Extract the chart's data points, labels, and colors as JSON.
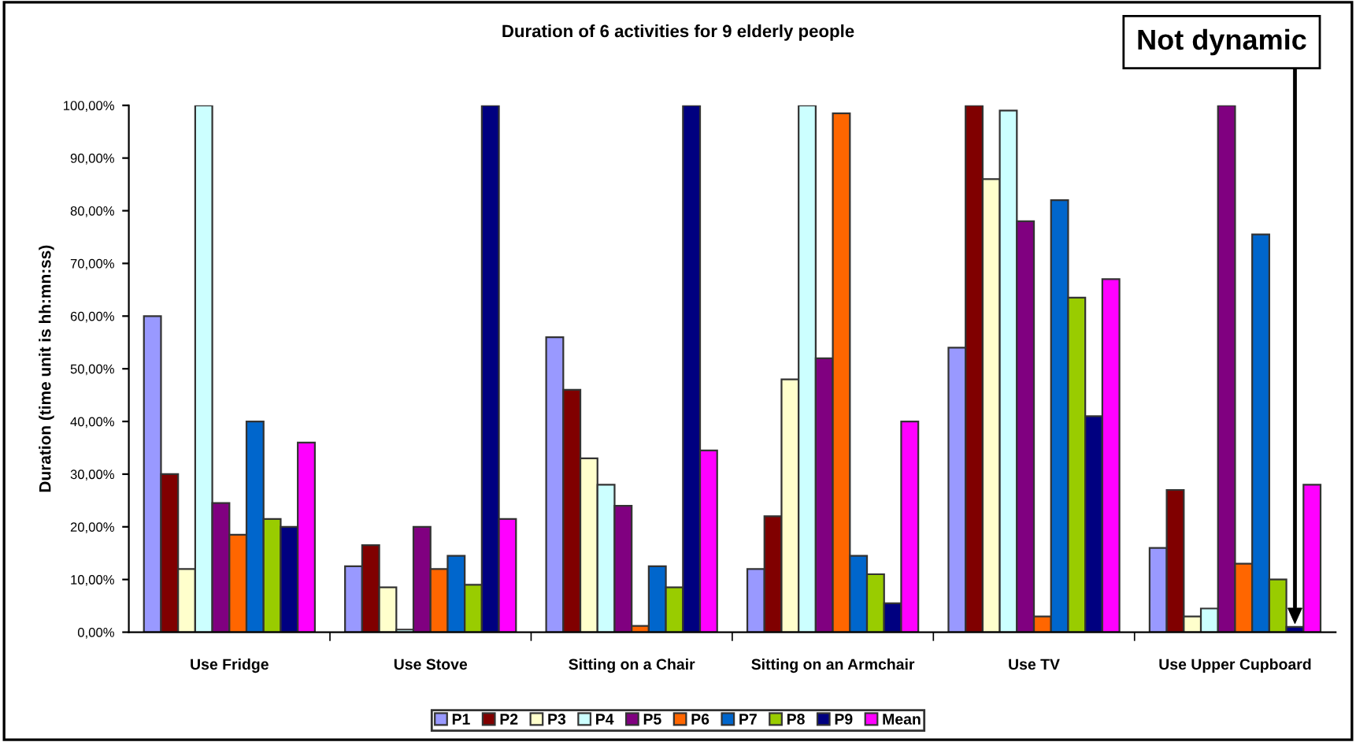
{
  "chart_data": {
    "type": "bar",
    "title": "Duration of 6 activities for 9 elderly people",
    "ylabel": "Duration (time unit is hh:mn:ss)",
    "categories": [
      "Use Fridge",
      "Use Stove",
      "Sitting on a Chair",
      "Sitting on an Armchair",
      "Use TV",
      "Use Upper Cupboard"
    ],
    "series": [
      {
        "name": "P1",
        "color": "#9999ff",
        "values": [
          60,
          12.5,
          56,
          12,
          54,
          16
        ]
      },
      {
        "name": "P2",
        "color": "#800000",
        "values": [
          30,
          16.5,
          46,
          22,
          100,
          27
        ]
      },
      {
        "name": "P3",
        "color": "#ffffcc",
        "values": [
          12,
          8.5,
          33,
          48,
          86,
          3
        ]
      },
      {
        "name": "P4",
        "color": "#ccffff",
        "values": [
          100,
          0.5,
          28,
          100,
          99,
          4.5
        ]
      },
      {
        "name": "P5",
        "color": "#800080",
        "values": [
          24.5,
          20,
          24,
          52,
          78,
          100
        ]
      },
      {
        "name": "P6",
        "color": "#ff6600",
        "values": [
          18.5,
          12,
          1.2,
          98.5,
          3,
          13
        ]
      },
      {
        "name": "P7",
        "color": "#0066cc",
        "values": [
          40,
          14.5,
          12.5,
          14.5,
          82,
          75.5
        ]
      },
      {
        "name": "P8",
        "color": "#99cc00",
        "values": [
          21.5,
          9,
          8.5,
          11,
          63.5,
          10
        ]
      },
      {
        "name": "P9",
        "color": "#000080",
        "values": [
          20,
          100,
          100,
          5.5,
          41,
          1
        ]
      },
      {
        "name": "Mean",
        "color": "#ff00ff",
        "values": [
          36,
          21.5,
          34.5,
          40,
          67,
          28
        ]
      }
    ],
    "ylim": [
      0,
      100
    ],
    "yticks": [
      {
        "value": 0,
        "label": "0,00%"
      },
      {
        "value": 10,
        "label": "10,00%"
      },
      {
        "value": 20,
        "label": "20,00%"
      },
      {
        "value": 30,
        "label": "30,00%"
      },
      {
        "value": 40,
        "label": "40,00%"
      },
      {
        "value": 50,
        "label": "50,00%"
      },
      {
        "value": 60,
        "label": "60,00%"
      },
      {
        "value": 70,
        "label": "70,00%"
      },
      {
        "value": 80,
        "label": "80,00%"
      },
      {
        "value": 90,
        "label": "90,00%"
      },
      {
        "value": 100,
        "label": "100,00%"
      }
    ],
    "annotations": [
      "Not dynamic"
    ],
    "legend": "bottom",
    "grid": false
  }
}
